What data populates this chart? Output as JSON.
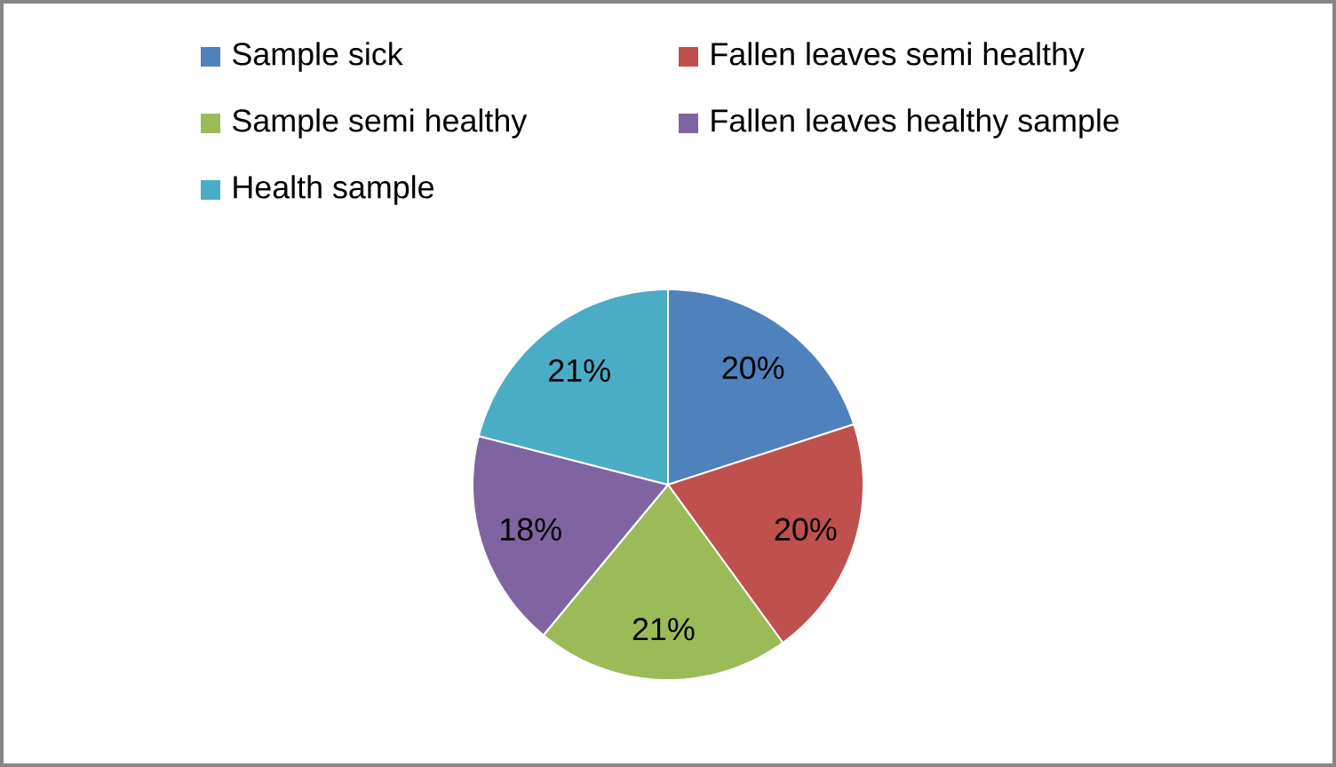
{
  "chart_data": {
    "type": "pie",
    "categories": [
      "Sample sick",
      "Fallen leaves semi healthy",
      "Sample semi healthy",
      "Fallen leaves healthy sample",
      "Health sample"
    ],
    "values": [
      20,
      20,
      21,
      18,
      21
    ],
    "value_labels": [
      "20%",
      "20%",
      "21%",
      "18%",
      "21%"
    ],
    "colors": [
      "#4f81bd",
      "#c0504d",
      "#9bbb59",
      "#8064a2",
      "#4bacc6"
    ],
    "legend": "top"
  }
}
